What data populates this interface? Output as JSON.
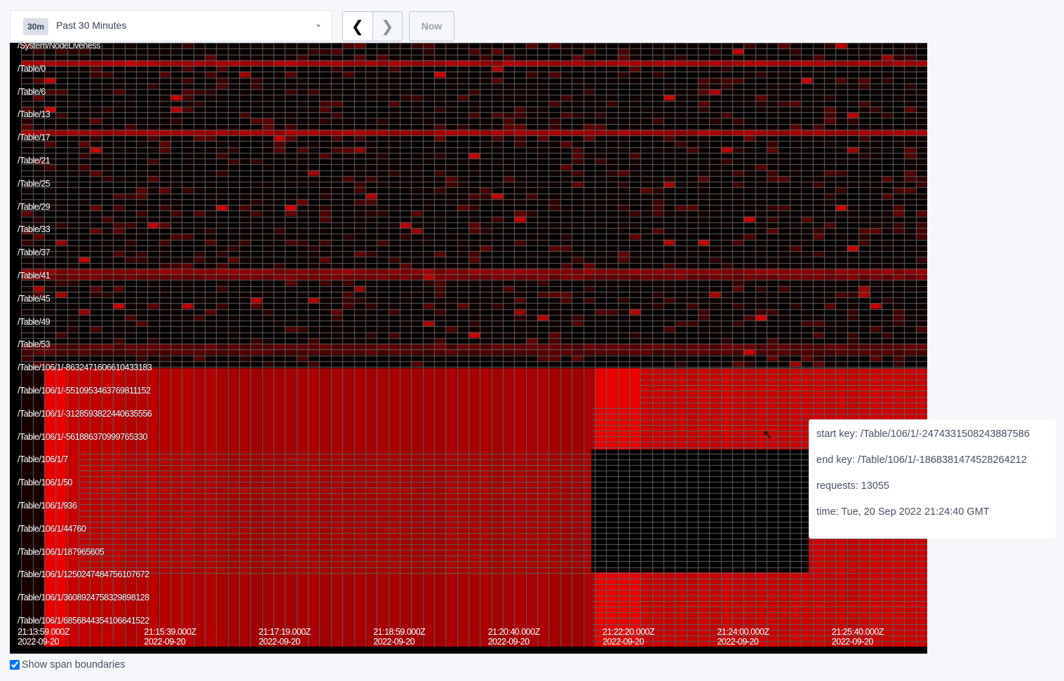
{
  "toolbar": {
    "range_badge": "30m",
    "range_label": "Past 30 Minutes",
    "prev_icon": "chevron-left",
    "next_icon": "chevron-right",
    "now_label": "Now"
  },
  "heatmap": {
    "key_labels": [
      "/System/NodeLiveness",
      "/Table/0",
      "/Table/6",
      "/Table/13",
      "/Table/17",
      "/Table/21",
      "/Table/25",
      "/Table/29",
      "/Table/33",
      "/Table/37",
      "/Table/41",
      "/Table/45",
      "/Table/49",
      "/Table/53",
      "/Table/106/1/-8632471606610433183",
      "/Table/106/1/-5510953463769811152",
      "/Table/106/1/-3128593822440635556",
      "/Table/106/1/-561886370999765330",
      "/Table/106/1/7",
      "/Table/106/1/50",
      "/Table/106/1/936",
      "/Table/106/1/44760",
      "/Table/106/1/187965605",
      "/Table/106/1/1250247484756107672",
      "/Table/106/1/3608924758329898128",
      "/Table/106/1/6856844354106641522"
    ],
    "time_labels": [
      {
        "time": "21:13:59.000Z",
        "date": "2022-09-20"
      },
      {
        "time": "21:15:39.000Z",
        "date": "2022-09-20"
      },
      {
        "time": "21:17:19.000Z",
        "date": "2022-09-20"
      },
      {
        "time": "21:18:59.000Z",
        "date": "2022-09-20"
      },
      {
        "time": "21:20:40.000Z",
        "date": "2022-09-20"
      },
      {
        "time": "21:22:20.000Z",
        "date": "2022-09-20"
      },
      {
        "time": "21:24:00.000Z",
        "date": "2022-09-20"
      },
      {
        "time": "21:25:40.000Z",
        "date": "2022-09-20"
      }
    ],
    "colors": {
      "hot": "#ff0000",
      "cold": "#000000",
      "grid": "#606060"
    }
  },
  "tooltip": {
    "start_key": "start key: /Table/106/1/-2474331508243887586",
    "end_key": "end key: /Table/106/1/-1868381474528264212",
    "requests": "requests: 13055",
    "time": "time: Tue, 20 Sep 2022 21:24:40 GMT"
  },
  "span_boundaries": {
    "label": "Show span boundaries",
    "checked": true
  }
}
